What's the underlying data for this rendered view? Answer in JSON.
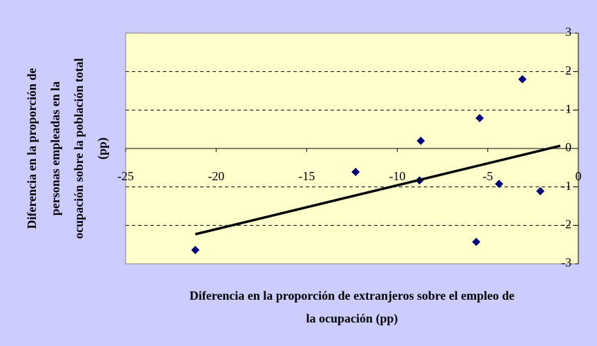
{
  "chart_data": {
    "type": "scatter",
    "x_label": [
      "Diferencia en la proporción de extranjeros sobre el empleo de",
      "la ocupación (pp)"
    ],
    "y_label": [
      "Diferencia en la proporción de",
      "personas empleadas en la",
      "ocupación sobre la población total",
      "(pp)"
    ],
    "series": [
      {
        "color": "#000080",
        "x": [
          -21.15,
          -12.3,
          -8.7,
          -8.77,
          -5.45,
          -5.64,
          -4.38,
          -3.09,
          -2.1
        ],
        "values": [
          -2.64,
          -0.61,
          0.2,
          -0.83,
          0.79,
          -2.43,
          -0.92,
          1.8,
          -1.11
        ]
      }
    ],
    "trendline": {
      "color": "#000000",
      "x": [
        -21.15,
        -1.0
      ],
      "values": [
        -2.23,
        0.07
      ]
    },
    "xlim": [
      -25,
      0
    ],
    "xticks": [
      -25,
      -20,
      -15,
      -10,
      -5,
      0
    ],
    "ylim": [
      -3,
      3
    ],
    "yticks": [
      -3,
      -2,
      -1,
      0,
      1,
      2,
      3
    ],
    "grid": true
  }
}
